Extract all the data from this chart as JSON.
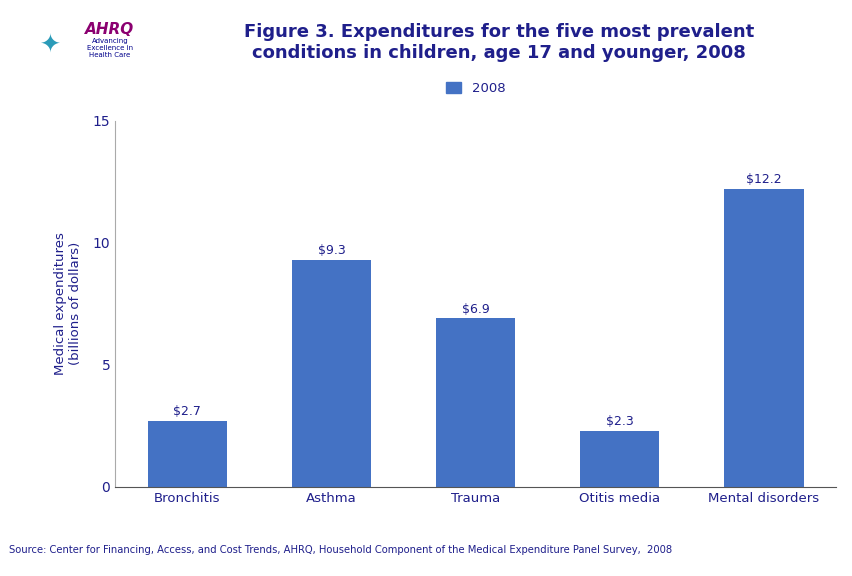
{
  "categories": [
    "Bronchitis",
    "Asthma",
    "Trauma",
    "Otitis media",
    "Mental disorders"
  ],
  "values": [
    2.7,
    9.3,
    6.9,
    2.3,
    12.2
  ],
  "labels": [
    "$2.7",
    "$9.3",
    "$6.9",
    "$2.3",
    "$12.2"
  ],
  "bar_color": "#4472C4",
  "title_line1": "Figure 3. Expenditures for the five most prevalent",
  "title_line2": "conditions in children, age 17 and younger, 2008",
  "title_color": "#1F1F8B",
  "ylabel": "Medical expenditures\n(billions of dollars)",
  "ylabel_color": "#1F1F8B",
  "ylim": [
    0,
    15
  ],
  "yticks": [
    0,
    5,
    10,
    15
  ],
  "legend_label": "2008",
  "legend_color": "#4472C4",
  "source_text": "Source: Center for Financing, Access, and Cost Trends, AHRQ, Household Component of the Medical Expenditure Panel Survey,  2008",
  "source_color": "#1F1F8B",
  "header_bar_color": "#1F1F8B",
  "logo_bg_color": "#2B9BB8",
  "tick_label_color": "#1F1F8B",
  "annotation_color": "#1F1F8B",
  "annotation_fontsize": 9,
  "bar_width": 0.55,
  "spine_bottom_color": "#555555",
  "spine_left_color": "#aaaaaa"
}
